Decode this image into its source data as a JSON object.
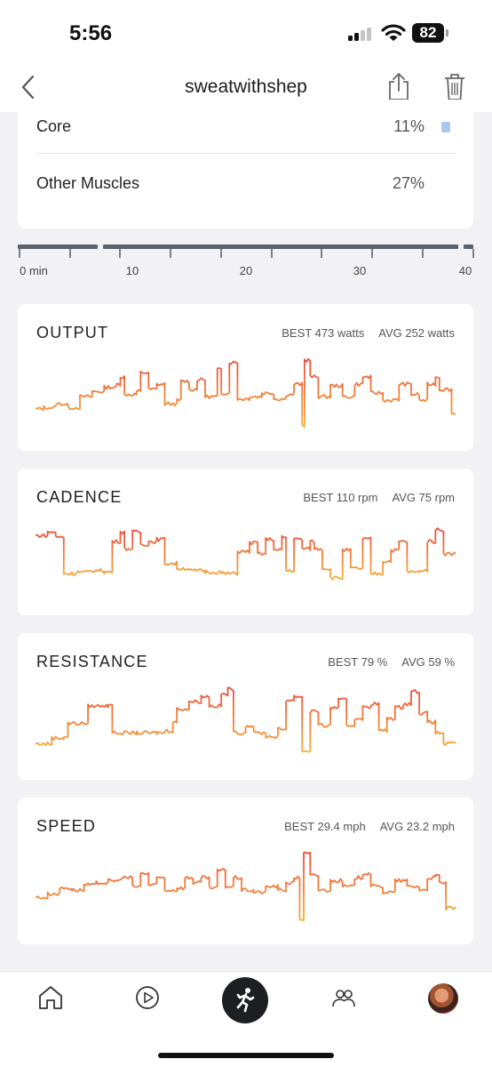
{
  "status_bar": {
    "time": "5:56",
    "battery": "82"
  },
  "nav": {
    "title": "sweatwithshep"
  },
  "muscles": [
    {
      "name": "Core",
      "percent": "11%",
      "bar": true
    },
    {
      "name": "Other Muscles",
      "percent": "27%",
      "bar": false
    }
  ],
  "timeline": {
    "ticks": [
      "0 min",
      "10",
      "20",
      "30",
      "40"
    ],
    "max_minutes": 40
  },
  "metrics": [
    {
      "title": "OUTPUT",
      "best": "BEST 473 watts",
      "avg": "AVG 252 watts",
      "profile": [
        [
          0,
          0.28
        ],
        [
          1,
          0.3
        ],
        [
          2.5,
          0.35
        ],
        [
          4,
          0.3
        ],
        [
          5.5,
          0.45
        ],
        [
          7,
          0.52
        ],
        [
          8.5,
          0.58
        ],
        [
          10,
          0.62
        ],
        [
          10.5,
          0.72
        ],
        [
          11,
          0.48
        ],
        [
          12.5,
          0.52
        ],
        [
          13,
          0.78
        ],
        [
          14,
          0.55
        ],
        [
          15,
          0.62
        ],
        [
          16,
          0.35
        ],
        [
          17.5,
          0.4
        ],
        [
          18,
          0.66
        ],
        [
          19,
          0.55
        ],
        [
          20,
          0.68
        ],
        [
          21,
          0.45
        ],
        [
          22.5,
          0.82
        ],
        [
          23,
          0.5
        ],
        [
          24,
          0.92
        ],
        [
          25,
          0.42
        ],
        [
          26.5,
          0.45
        ],
        [
          28,
          0.5
        ],
        [
          29.5,
          0.42
        ],
        [
          31,
          0.48
        ],
        [
          32,
          0.62
        ],
        [
          33,
          0.05
        ],
        [
          33.3,
          0.95
        ],
        [
          34,
          0.72
        ],
        [
          35,
          0.45
        ],
        [
          36.5,
          0.6
        ],
        [
          38,
          0.45
        ],
        [
          39.5,
          0.62
        ],
        [
          40.5,
          0.72
        ],
        [
          41.5,
          0.5
        ],
        [
          43,
          0.4
        ],
        [
          45,
          0.62
        ],
        [
          46.5,
          0.48
        ],
        [
          47.5,
          0.4
        ],
        [
          48.5,
          0.62
        ],
        [
          49.5,
          0.72
        ],
        [
          50,
          0.55
        ],
        [
          51.5,
          0.22
        ],
        [
          52,
          0.2
        ]
      ]
    },
    {
      "title": "CADENCE",
      "best": "BEST 110 rpm",
      "avg": "AVG 75 rpm",
      "profile": [
        [
          0,
          0.8
        ],
        [
          1.5,
          0.85
        ],
        [
          2.5,
          0.78
        ],
        [
          3.5,
          0.28
        ],
        [
          5,
          0.3
        ],
        [
          7,
          0.32
        ],
        [
          8.5,
          0.3
        ],
        [
          9.5,
          0.72
        ],
        [
          10.5,
          0.85
        ],
        [
          11,
          0.62
        ],
        [
          12,
          0.85
        ],
        [
          13,
          0.68
        ],
        [
          14,
          0.72
        ],
        [
          15,
          0.75
        ],
        [
          16,
          0.42
        ],
        [
          17.5,
          0.35
        ],
        [
          19,
          0.32
        ],
        [
          21,
          0.3
        ],
        [
          23,
          0.28
        ],
        [
          24,
          0.28
        ],
        [
          25,
          0.58
        ],
        [
          26.5,
          0.7
        ],
        [
          27.5,
          0.55
        ],
        [
          28.5,
          0.75
        ],
        [
          29.5,
          0.6
        ],
        [
          30.5,
          0.78
        ],
        [
          31,
          0.32
        ],
        [
          32,
          0.75
        ],
        [
          33,
          0.62
        ],
        [
          34,
          0.72
        ],
        [
          34.5,
          0.62
        ],
        [
          35.5,
          0.35
        ],
        [
          36.5,
          0.22
        ],
        [
          38,
          0.6
        ],
        [
          39,
          0.35
        ],
        [
          40.5,
          0.75
        ],
        [
          41.5,
          0.28
        ],
        [
          43,
          0.45
        ],
        [
          44,
          0.6
        ],
        [
          45,
          0.72
        ],
        [
          46,
          0.3
        ],
        [
          47.5,
          0.32
        ],
        [
          48.5,
          0.72
        ],
        [
          49.5,
          0.88
        ],
        [
          50.5,
          0.55
        ],
        [
          52,
          0.58
        ]
      ]
    },
    {
      "title": "RESISTANCE",
      "best": "BEST 79 %",
      "avg": "AVG 59 %",
      "profile": [
        [
          0,
          0.2
        ],
        [
          2,
          0.28
        ],
        [
          3.5,
          0.3
        ],
        [
          4,
          0.48
        ],
        [
          6.5,
          0.72
        ],
        [
          9,
          0.75
        ],
        [
          9.5,
          0.35
        ],
        [
          12.5,
          0.35
        ],
        [
          15,
          0.35
        ],
        [
          16,
          0.38
        ],
        [
          17,
          0.5
        ],
        [
          17.5,
          0.68
        ],
        [
          19,
          0.78
        ],
        [
          20.5,
          0.85
        ],
        [
          21.5,
          0.72
        ],
        [
          23,
          0.88
        ],
        [
          23.8,
          0.95
        ],
        [
          24.5,
          0.35
        ],
        [
          26,
          0.45
        ],
        [
          27,
          0.35
        ],
        [
          28.5,
          0.3
        ],
        [
          30,
          0.4
        ],
        [
          31,
          0.8
        ],
        [
          32,
          0.85
        ],
        [
          33,
          0.1
        ],
        [
          34,
          0.65
        ],
        [
          35,
          0.45
        ],
        [
          36.5,
          0.7
        ],
        [
          37.5,
          0.8
        ],
        [
          38.5,
          0.45
        ],
        [
          39.5,
          0.55
        ],
        [
          40.5,
          0.7
        ],
        [
          41.5,
          0.75
        ],
        [
          42.5,
          0.38
        ],
        [
          43.5,
          0.55
        ],
        [
          44.5,
          0.7
        ],
        [
          45.5,
          0.75
        ],
        [
          46.5,
          0.92
        ],
        [
          47.5,
          0.62
        ],
        [
          48.5,
          0.5
        ],
        [
          49.5,
          0.35
        ],
        [
          50.5,
          0.2
        ],
        [
          52,
          0.2
        ]
      ]
    },
    {
      "title": "SPEED",
      "best": "BEST 29.4 mph",
      "avg": "AVG 23.2 mph",
      "profile": [
        [
          0,
          0.35
        ],
        [
          1.5,
          0.4
        ],
        [
          3,
          0.48
        ],
        [
          4.5,
          0.45
        ],
        [
          6,
          0.52
        ],
        [
          7.5,
          0.55
        ],
        [
          9,
          0.58
        ],
        [
          10.5,
          0.62
        ],
        [
          12,
          0.5
        ],
        [
          13,
          0.68
        ],
        [
          14,
          0.52
        ],
        [
          15,
          0.62
        ],
        [
          16,
          0.45
        ],
        [
          17.5,
          0.48
        ],
        [
          18.5,
          0.62
        ],
        [
          19.5,
          0.55
        ],
        [
          20.5,
          0.62
        ],
        [
          21.5,
          0.48
        ],
        [
          22.5,
          0.72
        ],
        [
          23.5,
          0.5
        ],
        [
          24.5,
          0.62
        ],
        [
          25.5,
          0.45
        ],
        [
          27,
          0.42
        ],
        [
          28.5,
          0.5
        ],
        [
          30,
          0.45
        ],
        [
          31,
          0.55
        ],
        [
          32,
          0.62
        ],
        [
          32.7,
          0.05
        ],
        [
          33.2,
          0.95
        ],
        [
          34,
          0.65
        ],
        [
          35,
          0.45
        ],
        [
          36.5,
          0.58
        ],
        [
          38,
          0.5
        ],
        [
          39.5,
          0.62
        ],
        [
          40.5,
          0.68
        ],
        [
          41.5,
          0.5
        ],
        [
          43,
          0.42
        ],
        [
          44.5,
          0.58
        ],
        [
          46,
          0.5
        ],
        [
          47.5,
          0.45
        ],
        [
          48.5,
          0.62
        ],
        [
          49.5,
          0.65
        ],
        [
          50,
          0.55
        ],
        [
          50.8,
          0.2
        ],
        [
          52,
          0.22
        ]
      ]
    }
  ],
  "colors": {
    "line_top": "#ef4b3a",
    "line_bottom": "#f6b03a",
    "timeline_bar": "#5a636c",
    "core_bar": "#a7c8f0"
  },
  "tabbar": {
    "icons": [
      "home-icon",
      "play-circle-icon",
      "running-figure-icon",
      "community-icon",
      "profile-avatar"
    ]
  }
}
